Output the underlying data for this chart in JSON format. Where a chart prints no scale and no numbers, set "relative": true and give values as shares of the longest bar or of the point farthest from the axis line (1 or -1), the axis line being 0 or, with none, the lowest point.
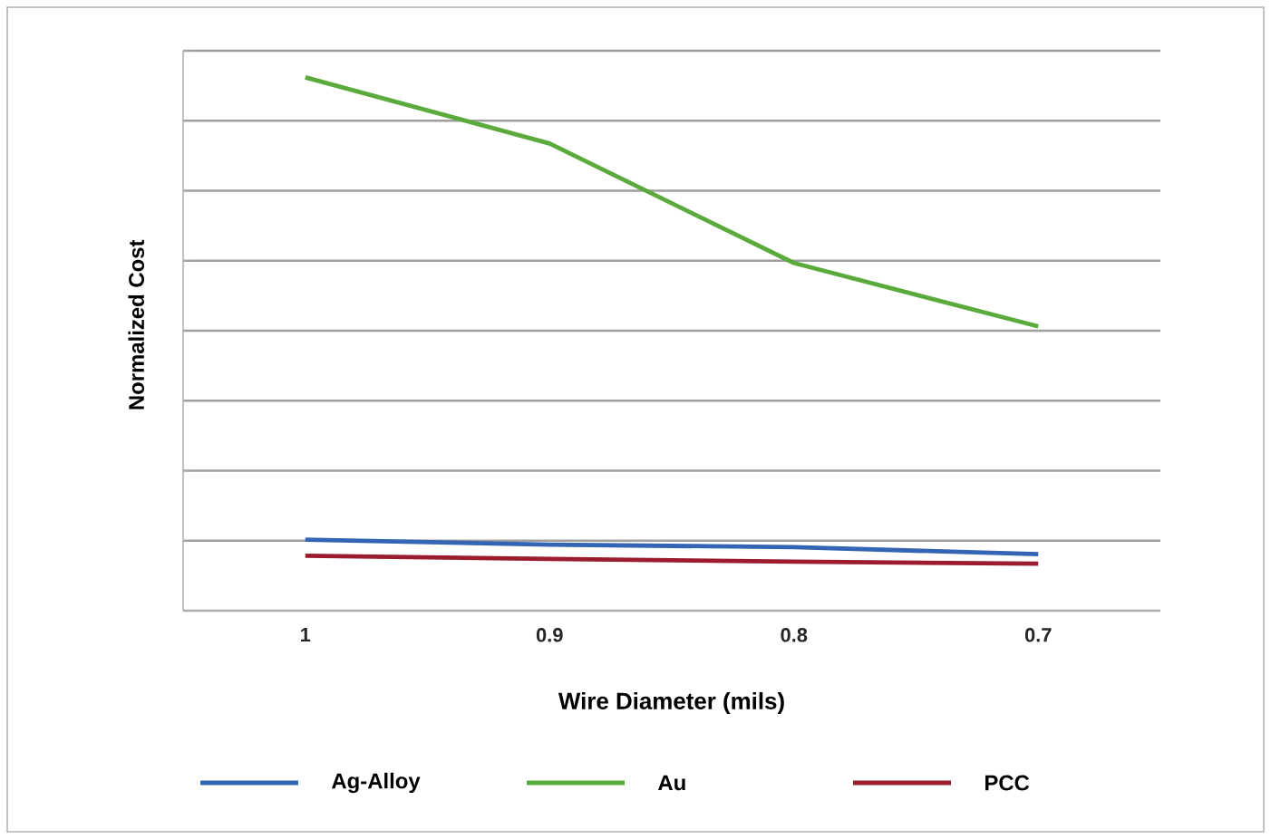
{
  "chart_data": {
    "type": "line",
    "xlabel": "Wire Diameter (mils)",
    "ylabel": "Normalized Cost",
    "categories": [
      "1",
      "0.9",
      "0.8",
      "0.7"
    ],
    "relative": true,
    "grid": "y",
    "legend": "bottom",
    "marker": "none",
    "line_style": "solid",
    "series": [
      {
        "name": "Ag-Alloy",
        "color": "#3465b5",
        "values": [
          0.133,
          0.124,
          0.119,
          0.106
        ]
      },
      {
        "name": "Au",
        "color": "#5aaa3c",
        "values": [
          1,
          0.876,
          0.652,
          0.533
        ]
      },
      {
        "name": "PCC",
        "color": "#9b1c2c",
        "values": [
          0.103,
          0.097,
          0.092,
          0.088
        ]
      }
    ]
  }
}
